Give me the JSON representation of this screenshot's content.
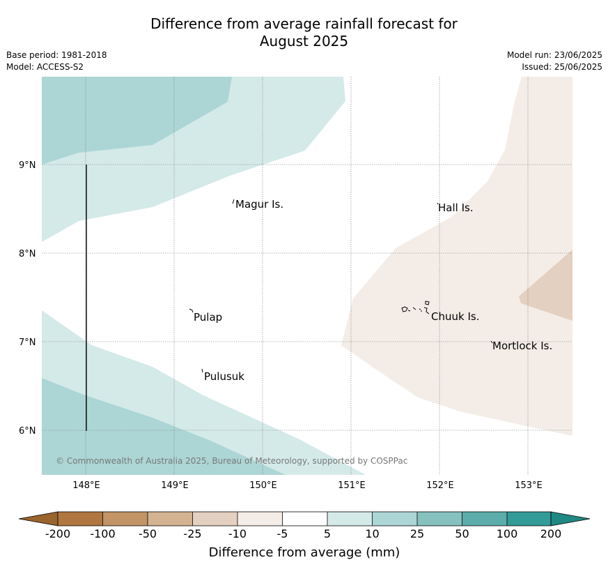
{
  "title": {
    "line1": "Difference from average rainfall forecast for",
    "line2": "August 2025"
  },
  "meta": {
    "base_period": "Base period: 1981-2018",
    "model": "Model: ACCESS-S2",
    "model_run": "Model run: 23/06/2025",
    "issued": "Issued: 25/06/2025"
  },
  "map": {
    "lon_range": [
      147.5,
      153.5
    ],
    "lat_range": [
      5.5,
      10.0
    ],
    "lon_ticks": [
      "148°E",
      "149°E",
      "150°E",
      "151°E",
      "152°E",
      "153°E"
    ],
    "lat_ticks": [
      "9°N",
      "8°N",
      "7°N",
      "6°N"
    ],
    "places": [
      {
        "name": "Magur Is.",
        "lon": 149.67,
        "lat": 8.55
      },
      {
        "name": "Hall Is.",
        "lon": 151.98,
        "lat": 8.52
      },
      {
        "name": "Pulap",
        "lon": 149.2,
        "lat": 7.29
      },
      {
        "name": "Chuuk Is.",
        "lon": 151.85,
        "lat": 7.3
      },
      {
        "name": "Mortlock Is.",
        "lon": 152.58,
        "lat": 6.96
      },
      {
        "name": "Pulusuk",
        "lon": 149.32,
        "lat": 6.62
      }
    ],
    "copyright": "© Commonwealth of Australia 2025, Bureau of Meteorology, supported by COSPPac",
    "zones": [
      {
        "category": "10 to 25",
        "color": "#acd6d5"
      },
      {
        "category": "5 to 10",
        "color": "#d4eae9"
      },
      {
        "category": "-10 to -5",
        "color": "#f4ede7"
      },
      {
        "category": "-25 to -10",
        "color": "#e4d0c0"
      }
    ]
  },
  "colorbar": {
    "ticks": [
      "-200",
      "-100",
      "-50",
      "-25",
      "-10",
      "-5",
      "5",
      "10",
      "25",
      "50",
      "100",
      "200"
    ],
    "colors": [
      "#b07740",
      "#c29466",
      "#d4b392",
      "#e4d0c0",
      "#f4ede7",
      "#ffffff",
      "#d4eae9",
      "#acd6d5",
      "#86c1bf",
      "#5cadab",
      "#339b98"
    ],
    "under_color": "#9a642d",
    "over_color": "#208884",
    "label": "Difference from average (mm)"
  }
}
